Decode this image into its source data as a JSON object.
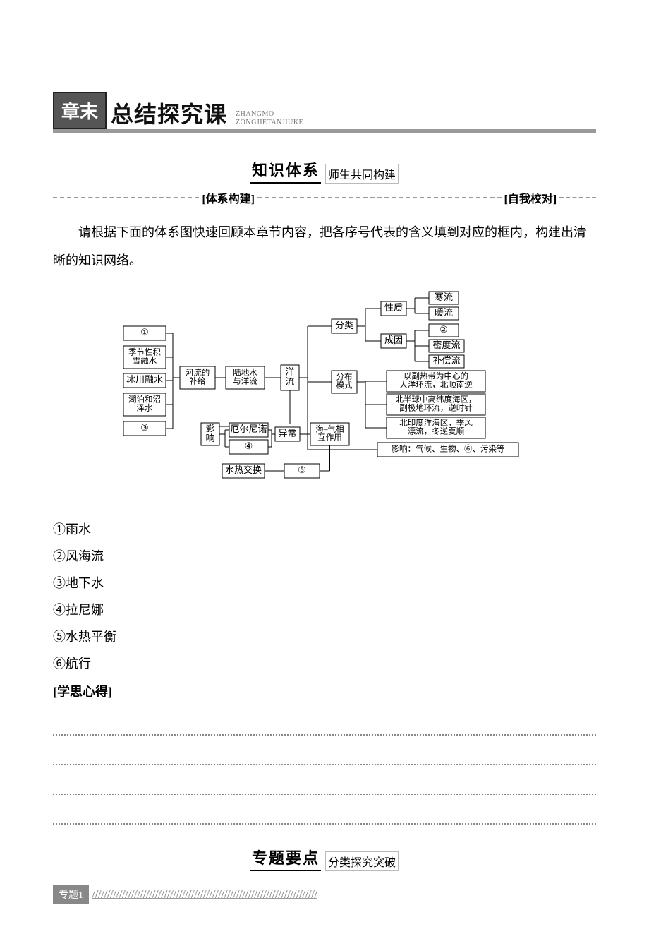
{
  "colors": {
    "banner_bg": "#555555",
    "banner_border": "#222222",
    "underline": "#999999",
    "dotted": "#888888",
    "text": "#111111"
  },
  "title": {
    "badge": "章末",
    "text": "总结探究课",
    "pinyin_line1": "ZHANGMO",
    "pinyin_line2": "ZONGJIETANJIUKE"
  },
  "section1": {
    "main": "知识体系",
    "sub": "师生共同构建",
    "left_label": "[体系构建]",
    "right_label": "[自我校对]"
  },
  "intro": "请根据下面的体系图快速回顾本章节内容，把各序号代表的含义填到对应的框内，构建出清晰的知识网络。",
  "concept_map": {
    "type": "tree",
    "background": "#ffffff",
    "node_fill": "#ffffff",
    "node_stroke": "#000000",
    "font_size": 13,
    "nodes": {
      "n1": "①",
      "seasonal": "季节性积\n雪融水",
      "glacier": "冰川融水",
      "lake": "湖泊和沼\n泽水",
      "n3": "③",
      "river_supply": "河流的\n补给",
      "land_water": "陆地水\n与洋流",
      "influence": "影\n响",
      "elnino": "厄尔尼诺",
      "n4": "④",
      "heat_exchange": "水热交换",
      "n5": "⑤",
      "ocean_current": "洋\n流",
      "anomaly": "异常",
      "sea_air": "海–气相\n互作用",
      "classify": "分类",
      "distribution": "分布\n模式",
      "nature": "性质",
      "cause": "成因",
      "cold": "寒流",
      "warm": "暖流",
      "n2": "②",
      "density": "密度流",
      "compensate": "补偿流",
      "gyre1": "以副热带为中心的\n大洋环流，北顺南逆",
      "gyre2": "北半球中高纬度海区，\n副极地环流，逆时针",
      "gyre3": "北印度洋海区，季风\n漂流，冬逆夏顺",
      "effect": "影响：气候、生物、⑥、污染等"
    }
  },
  "answers": [
    "①雨水",
    "②风海流",
    "③地下水",
    "④拉尼娜",
    "⑤水热平衡",
    "⑥航行"
  ],
  "notes_heading": "[学思心得]",
  "note_line_count": 4,
  "section2": {
    "main": "专题要点",
    "sub": "分类探究突破"
  },
  "topic1_label": "专题1"
}
